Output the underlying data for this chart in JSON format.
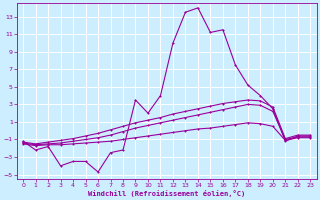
{
  "xlabel": "Windchill (Refroidissement éolien,°C)",
  "bg_color": "#cceeff",
  "line_color": "#990099",
  "grid_color": "#ffffff",
  "xlim": [
    -0.5,
    23.5
  ],
  "ylim": [
    -5.5,
    14.5
  ],
  "yticks": [
    -5,
    -3,
    -1,
    1,
    3,
    5,
    7,
    9,
    11,
    13
  ],
  "xticks": [
    0,
    1,
    2,
    3,
    4,
    5,
    6,
    7,
    8,
    9,
    10,
    11,
    12,
    13,
    14,
    15,
    16,
    17,
    18,
    19,
    20,
    21,
    22,
    23
  ],
  "series1_x": [
    0,
    1,
    2,
    3,
    4,
    5,
    6,
    7,
    8,
    9,
    10,
    11,
    12,
    13,
    14,
    15,
    16,
    17,
    18,
    19,
    20,
    21,
    22,
    23
  ],
  "series1_y": [
    -1.2,
    -2.2,
    -1.8,
    -4.0,
    -3.5,
    -3.5,
    -4.7,
    -2.5,
    -2.2,
    3.5,
    2.0,
    4.0,
    10.0,
    13.5,
    14.0,
    11.2,
    11.5,
    7.5,
    5.2,
    4.0,
    2.5,
    -1.2,
    -0.6,
    -0.6
  ],
  "series2_x": [
    0,
    1,
    2,
    3,
    4,
    5,
    6,
    7,
    8,
    9,
    10,
    11,
    12,
    13,
    14,
    15,
    16,
    17,
    18,
    19,
    20,
    21,
    22,
    23
  ],
  "series2_y": [
    -1.3,
    -1.5,
    -1.3,
    -1.1,
    -0.9,
    -0.6,
    -0.3,
    0.1,
    0.5,
    0.9,
    1.2,
    1.5,
    1.9,
    2.2,
    2.5,
    2.8,
    3.1,
    3.3,
    3.5,
    3.4,
    2.7,
    -0.9,
    -0.5,
    -0.5
  ],
  "series3_x": [
    0,
    1,
    2,
    3,
    4,
    5,
    6,
    7,
    8,
    9,
    10,
    11,
    12,
    13,
    14,
    15,
    16,
    17,
    18,
    19,
    20,
    21,
    22,
    23
  ],
  "series3_y": [
    -1.4,
    -1.6,
    -1.5,
    -1.4,
    -1.2,
    -1.0,
    -0.8,
    -0.5,
    -0.1,
    0.3,
    0.6,
    0.9,
    1.2,
    1.5,
    1.8,
    2.1,
    2.4,
    2.7,
    3.0,
    2.9,
    2.2,
    -1.0,
    -0.7,
    -0.7
  ],
  "series4_x": [
    0,
    1,
    2,
    3,
    4,
    5,
    6,
    7,
    8,
    9,
    10,
    11,
    12,
    13,
    14,
    15,
    16,
    17,
    18,
    19,
    20,
    21,
    22,
    23
  ],
  "series4_y": [
    -1.5,
    -1.7,
    -1.6,
    -1.6,
    -1.5,
    -1.4,
    -1.3,
    -1.2,
    -1.0,
    -0.8,
    -0.6,
    -0.4,
    -0.2,
    0.0,
    0.2,
    0.3,
    0.5,
    0.7,
    0.9,
    0.8,
    0.5,
    -1.1,
    -0.8,
    -0.8
  ]
}
